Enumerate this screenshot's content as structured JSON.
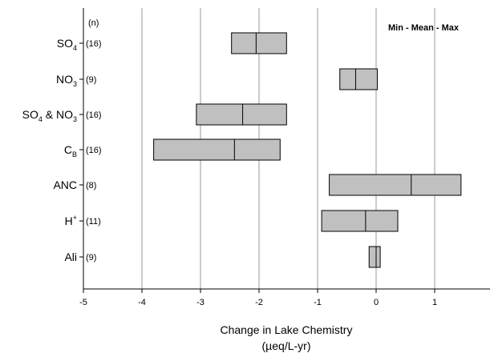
{
  "chart_data": {
    "type": "bar",
    "orientation": "horizontal",
    "title": "",
    "xlabel": "Change in Lake Chemistry",
    "xlabel_unit": "(µeq/L-yr)",
    "n_header": "(n)",
    "legend_text": "Min - Mean - Max",
    "legend_position": "top-right",
    "xlim": [
      -5,
      1.9
    ],
    "x_ticks": [
      -5,
      -4,
      -3,
      -2,
      -1,
      0,
      1
    ],
    "x_tick_labels": [
      "-5",
      "-4",
      "-3",
      "-2",
      "-1",
      "0",
      "1"
    ],
    "grid": "vertical",
    "colors": {
      "box_fill": "#c0c0c0",
      "box_stroke": "#000000",
      "grid": "#9a9a9a"
    },
    "categories": [
      {
        "main": "SO",
        "sub": "4",
        "main2": "",
        "sub2": "",
        "sup": "",
        "n": "(16)",
        "min": -2.47,
        "mean": -2.05,
        "max": -1.53
      },
      {
        "main": "NO",
        "sub": "3",
        "main2": "",
        "sub2": "",
        "sup": "",
        "n": "(9)",
        "min": -0.62,
        "mean": -0.35,
        "max": 0.02
      },
      {
        "main": "SO",
        "sub": "4",
        "main2": " & NO",
        "sub2": "3",
        "sup": "",
        "n": "(16)",
        "min": -3.07,
        "mean": -2.28,
        "max": -1.53
      },
      {
        "main": "C",
        "sub": "B",
        "main2": "",
        "sub2": "",
        "sup": "",
        "n": "(16)",
        "min": -3.8,
        "mean": -2.42,
        "max": -1.64
      },
      {
        "main": "ANC",
        "sub": "",
        "main2": "",
        "sub2": "",
        "sup": "",
        "n": "(8)",
        "min": -0.8,
        "mean": 0.6,
        "max": 1.45
      },
      {
        "main": "H",
        "sub": "",
        "main2": "",
        "sub2": "",
        "sup": "+",
        "n": "(11)",
        "min": -0.93,
        "mean": -0.18,
        "max": 0.37
      },
      {
        "main": "Ali",
        "sub": "",
        "main2": "",
        "sub2": "",
        "sup": "",
        "n": "(9)",
        "min": -0.12,
        "mean": 0.0,
        "max": 0.07
      }
    ]
  }
}
